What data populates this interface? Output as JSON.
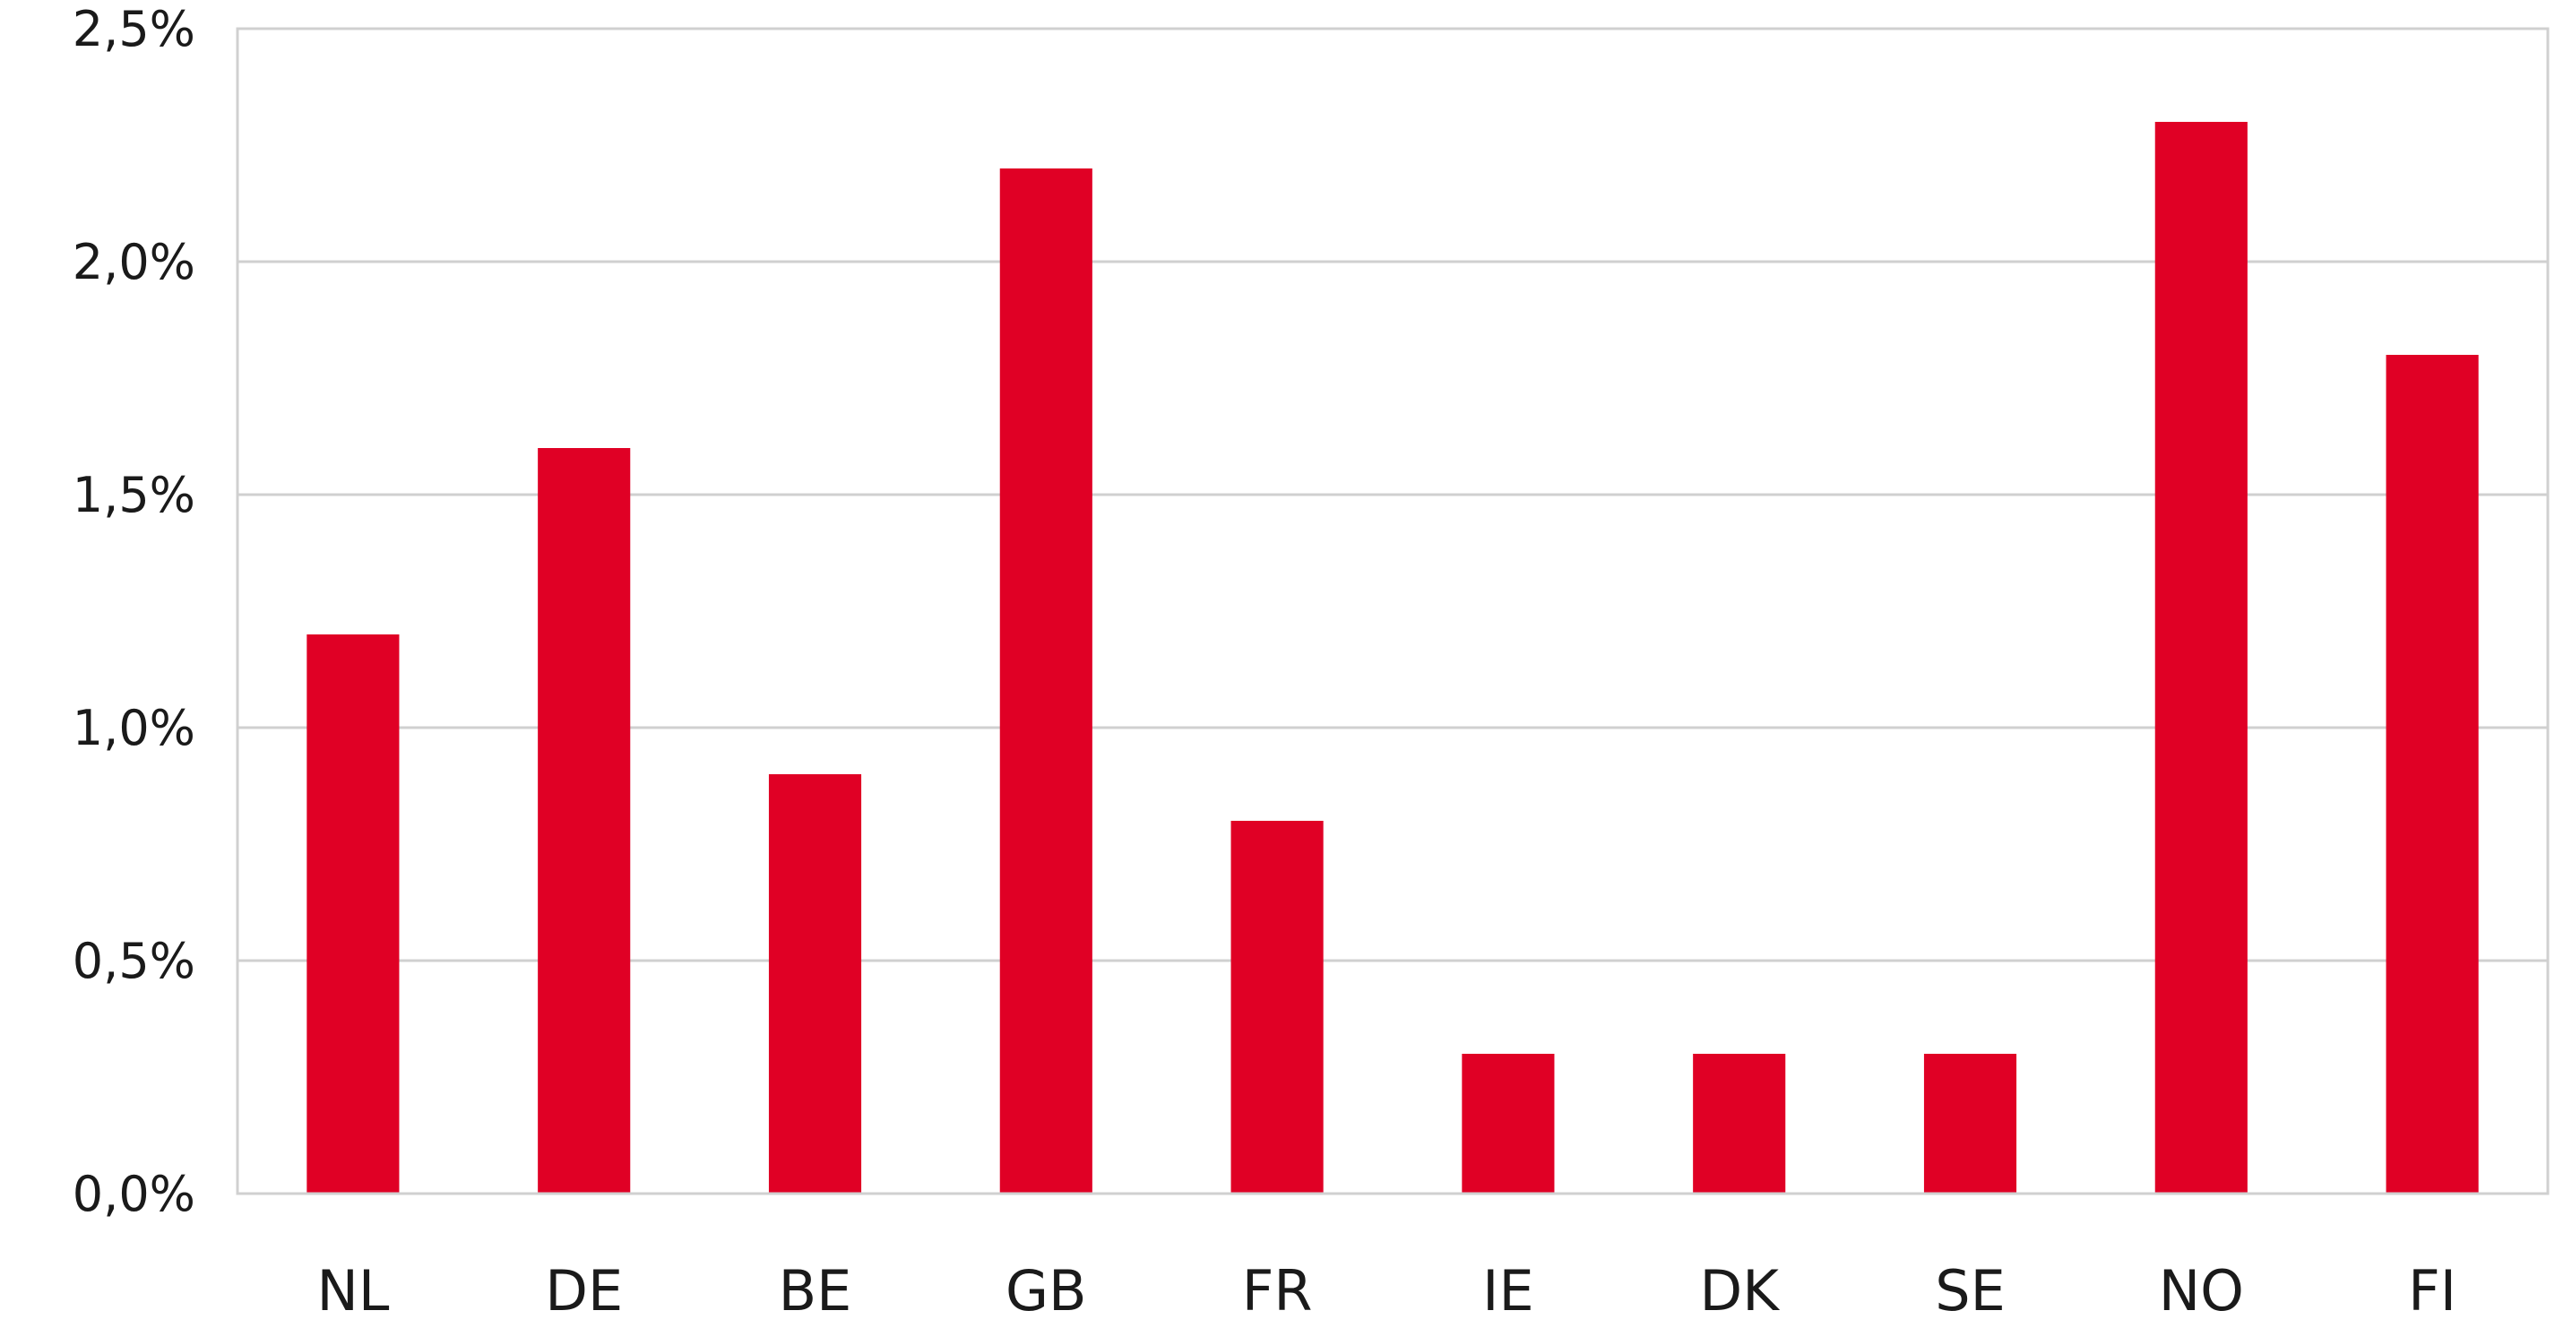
{
  "chart_data": {
    "type": "bar",
    "categories": [
      "NL",
      "DE",
      "BE",
      "GB",
      "FR",
      "IE",
      "DK",
      "SE",
      "NO",
      "FI"
    ],
    "series": [
      {
        "values": [
          1.2,
          1.6,
          0.9,
          2.2,
          0.8,
          0.3,
          0.3,
          0.3,
          2.3,
          1.8
        ]
      }
    ],
    "y_ticks": [
      "0,0%",
      "0,5%",
      "1,0%",
      "1,5%",
      "2,0%",
      "2,5%"
    ],
    "ylim": [
      0,
      2.5
    ],
    "y_tick_step": 0.5,
    "title": "",
    "xlabel": "",
    "ylabel": "",
    "grid": true,
    "legend": "none",
    "colors": {
      "bar": "#E00025",
      "grid": "#D0D0D0",
      "frame": "#D0D0D0",
      "text": "#1A1A1A"
    }
  }
}
